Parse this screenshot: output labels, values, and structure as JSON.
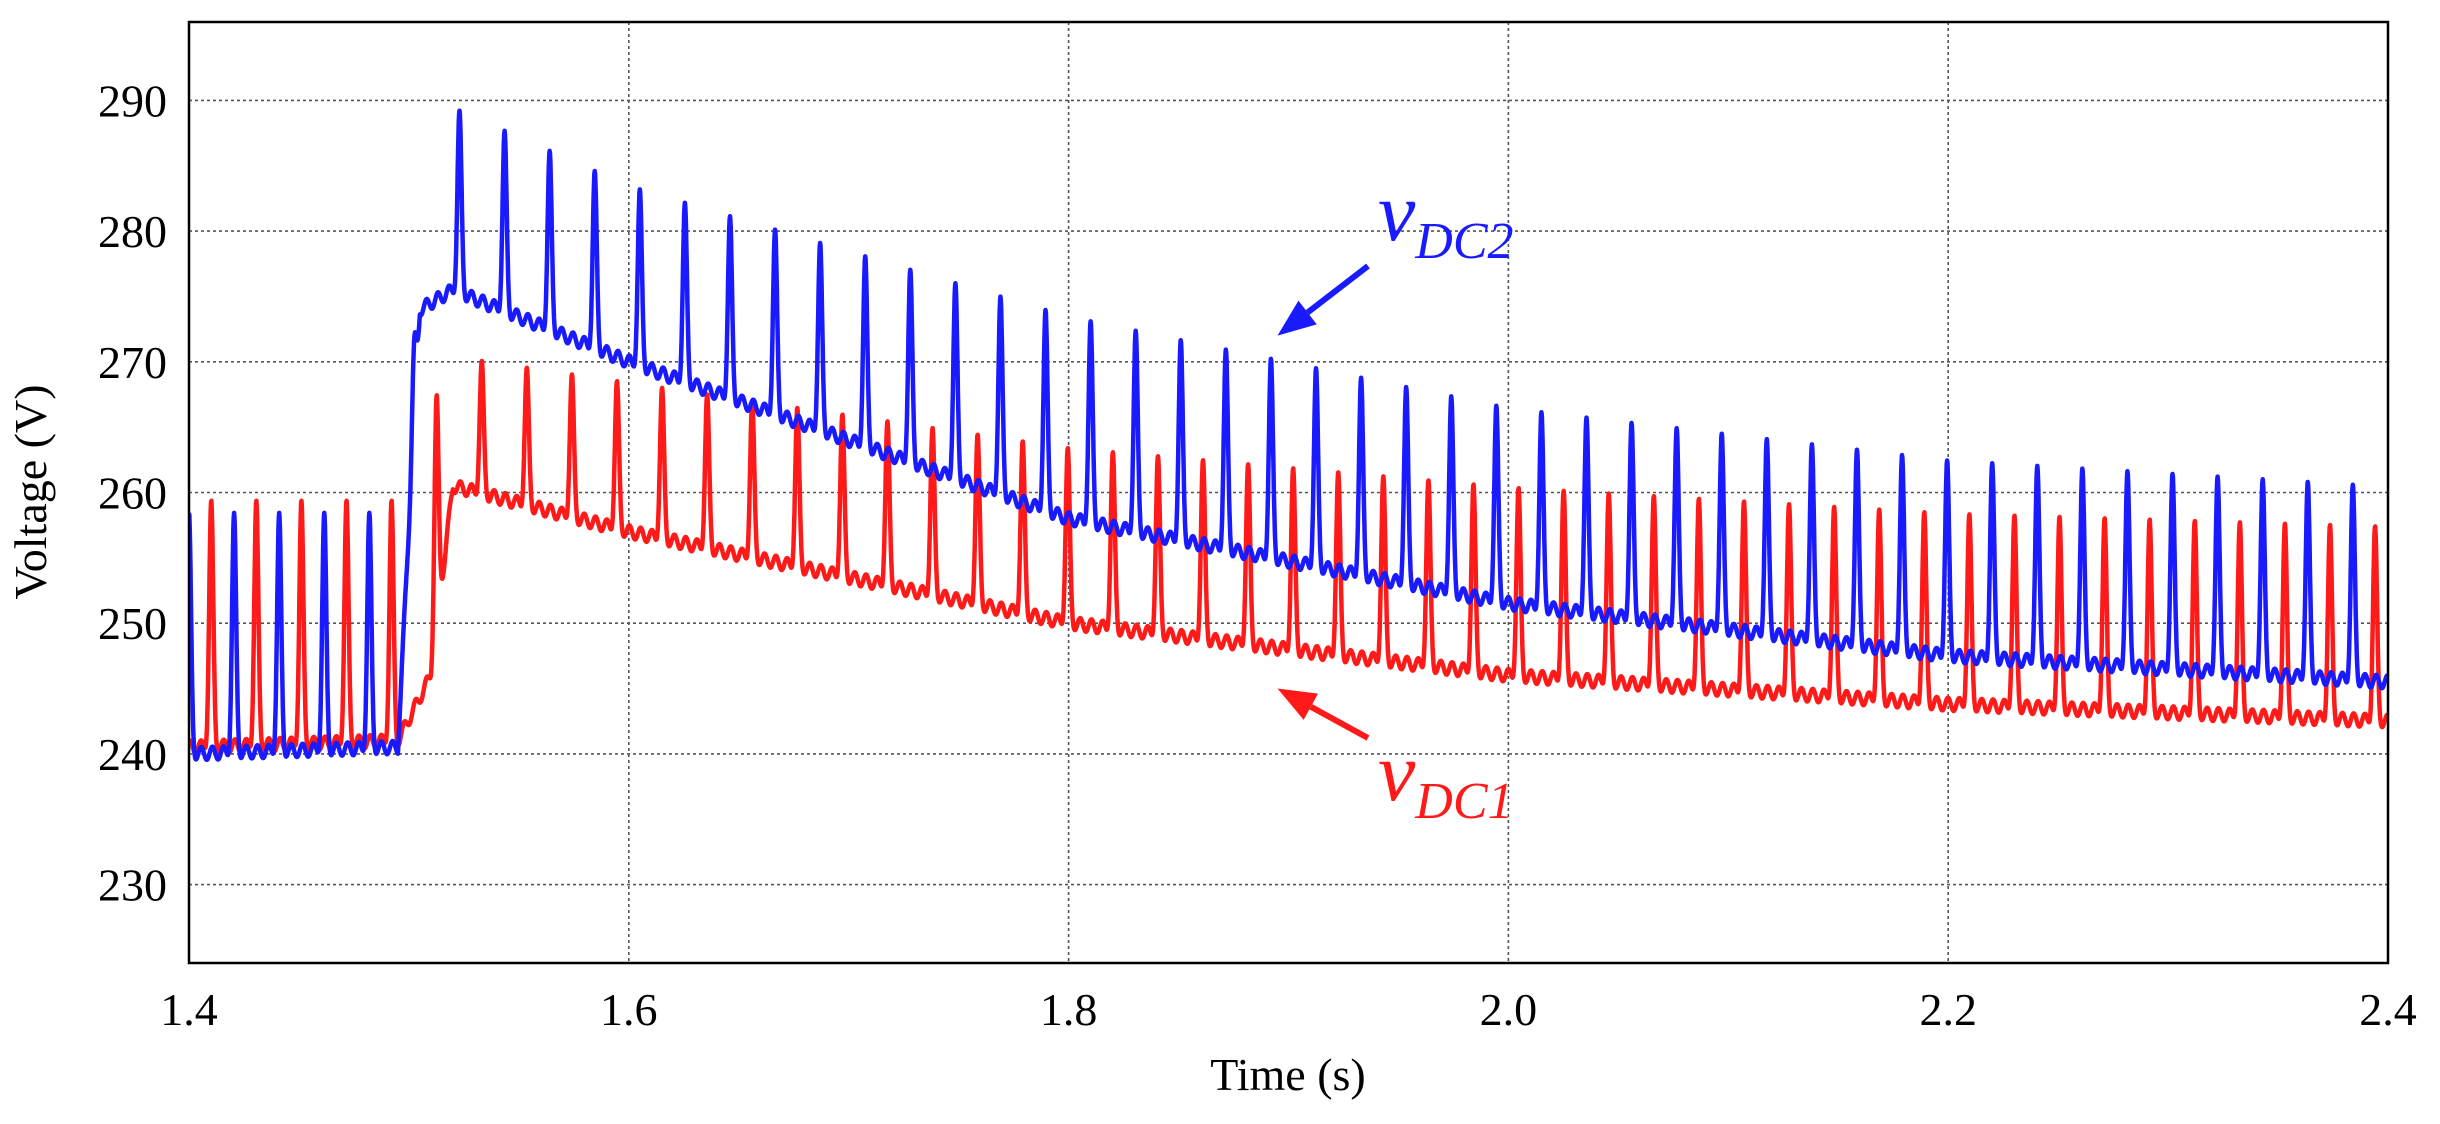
{
  "chart_data": {
    "type": "line",
    "title": "",
    "xlabel": "Time (s)",
    "ylabel": "Voltage (V)",
    "xlim": [
      1.4,
      2.4
    ],
    "ylim": [
      224,
      296
    ],
    "grid": true,
    "xticks": [
      1.4,
      1.6,
      1.8,
      2.0,
      2.2,
      2.4
    ],
    "xtick_labels": [
      "1.4",
      "1.6",
      "1.8",
      "2.0",
      "2.2",
      "2.4"
    ],
    "yticks": [
      230,
      240,
      250,
      260,
      270,
      280,
      290
    ],
    "ytick_labels": [
      "230",
      "240",
      "250",
      "260",
      "270",
      "280",
      "290"
    ],
    "ripple_period_s": 0.0205,
    "series": [
      {
        "name": "vDC1",
        "label_main": "v",
        "label_sub": "DC1",
        "color": "#ff1a1a",
        "peak_offset_s": 0.0101,
        "envelope": {
          "time": [
            1.4,
            1.495,
            1.51,
            1.52,
            1.6,
            1.8,
            2.0,
            2.2,
            2.4
          ],
          "baseline": [
            240.5,
            241,
            246,
            260.5,
            257,
            250,
            246,
            243.8,
            242.5
          ],
          "peak": [
            259,
            259,
            266,
            270,
            268,
            263,
            260,
            258,
            257
          ]
        }
      },
      {
        "name": "vDC2",
        "label_main": "v",
        "label_sub": "DC2",
        "color": "#1a1aff",
        "peak_offset_s": 0,
        "envelope": {
          "time": [
            1.4,
            1.495,
            1.505,
            1.52,
            1.6,
            1.8,
            2.0,
            2.2,
            2.4
          ],
          "baseline": [
            240,
            240.5,
            274,
            275.5,
            270,
            258,
            251.5,
            247.5,
            245.5
          ],
          "peak": [
            258,
            258,
            276,
            289,
            283,
            273,
            266,
            262,
            260
          ]
        }
      }
    ],
    "annotations": [
      {
        "series": "vDC2",
        "text_main": "v",
        "text_sub": "DC2",
        "color": "#1a1aff",
        "point_to": {
          "x": 1.895,
          "y": 272
        }
      },
      {
        "series": "vDC1",
        "text_main": "v",
        "text_sub": "DC1",
        "color": "#ff1a1a",
        "point_to": {
          "x": 1.895,
          "y": 245
        }
      }
    ]
  }
}
